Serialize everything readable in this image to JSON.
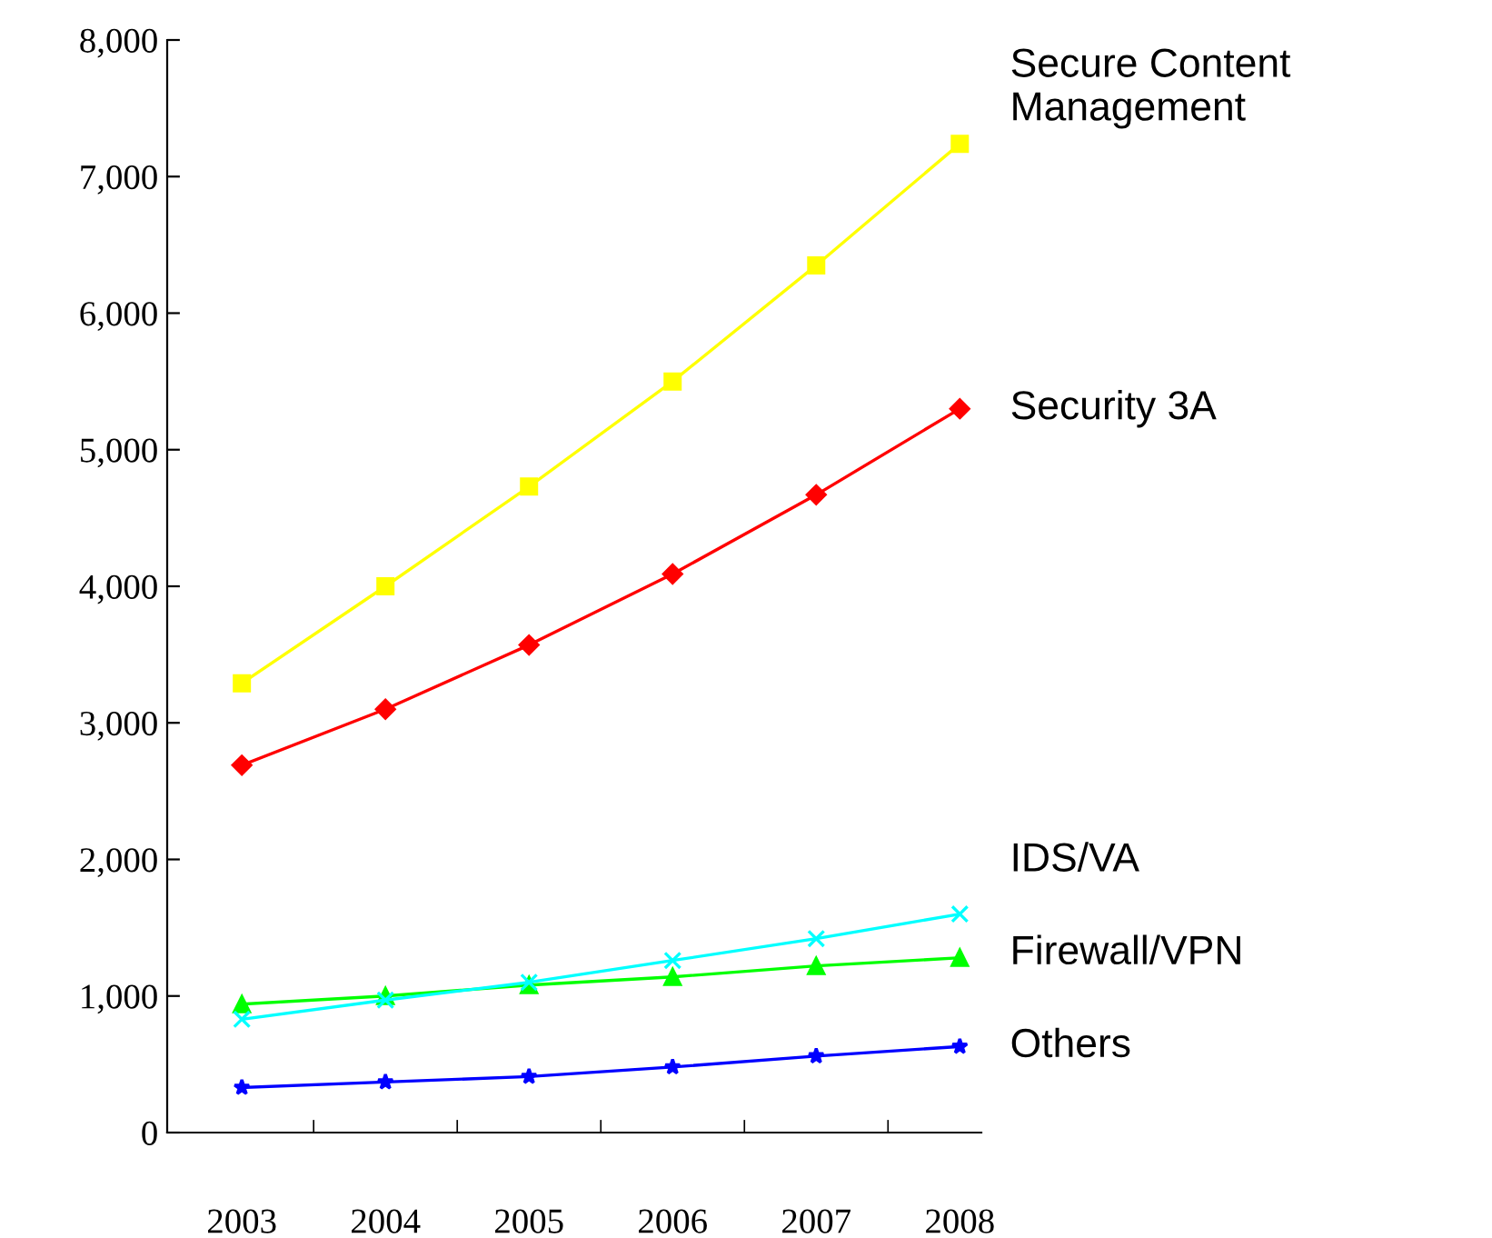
{
  "chart_data": {
    "type": "line",
    "categories": [
      "2003",
      "2004",
      "2005",
      "2006",
      "2007",
      "2008"
    ],
    "ylim": [
      0,
      8000
    ],
    "yticks": [
      {
        "value": 0,
        "label": "0"
      },
      {
        "value": 1000,
        "label": "1,000"
      },
      {
        "value": 2000,
        "label": "2,000"
      },
      {
        "value": 3000,
        "label": "3,000"
      },
      {
        "value": 4000,
        "label": "4,000"
      },
      {
        "value": 5000,
        "label": "5,000"
      },
      {
        "value": 6000,
        "label": "6,000"
      },
      {
        "value": 7000,
        "label": "7,000"
      },
      {
        "value": 8000,
        "label": "8,000"
      }
    ],
    "grid": false,
    "legend": false,
    "series": [
      {
        "name": "Secure Content Management",
        "color": "#ffff00",
        "marker": "square",
        "values": [
          3290,
          4000,
          4730,
          5500,
          6350,
          7240
        ]
      },
      {
        "name": "Security 3A",
        "color": "#ff0000",
        "marker": "diamond",
        "values": [
          2690,
          3100,
          3570,
          4090,
          4670,
          5300
        ]
      },
      {
        "name": "IDS/VA",
        "color": "#00ffff",
        "marker": "cross",
        "values": [
          830,
          970,
          1100,
          1260,
          1420,
          1600
        ]
      },
      {
        "name": "Firewall/VPN",
        "color": "#00ff00",
        "marker": "triangle",
        "values": [
          940,
          1000,
          1080,
          1140,
          1220,
          1280
        ]
      },
      {
        "name": "Others",
        "color": "#0000ff",
        "marker": "star",
        "values": [
          330,
          370,
          410,
          480,
          560,
          630
        ]
      }
    ]
  }
}
